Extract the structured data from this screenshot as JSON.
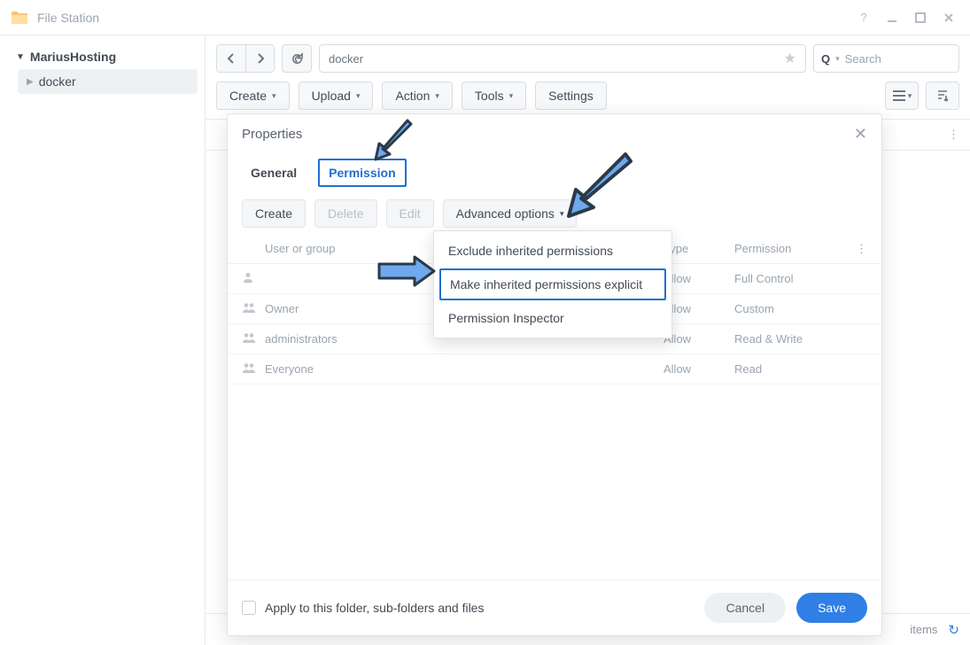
{
  "window": {
    "title": "File Station"
  },
  "sidebar": {
    "root": "MariusHosting",
    "items": [
      "docker"
    ]
  },
  "toolbar": {
    "path": "docker",
    "search_placeholder": "Search",
    "buttons": {
      "create": "Create",
      "upload": "Upload",
      "action": "Action",
      "tools": "Tools",
      "settings": "Settings"
    }
  },
  "statusbar": {
    "text": "items"
  },
  "dialog": {
    "title": "Properties",
    "tabs": {
      "general": "General",
      "permission": "Permission"
    },
    "tools": {
      "create": "Create",
      "delete": "Delete",
      "edit": "Edit",
      "advanced": "Advanced options"
    },
    "columns": {
      "user": "User or group",
      "type": "Type",
      "perm": "Permission"
    },
    "rows": [
      {
        "user": "",
        "type": "Allow",
        "perm": "Full Control",
        "icon": "user"
      },
      {
        "user": "Owner",
        "type": "Allow",
        "perm": "Custom",
        "icon": "group"
      },
      {
        "user": "administrators",
        "type": "Allow",
        "perm": "Read & Write",
        "icon": "group"
      },
      {
        "user": "Everyone",
        "type": "Allow",
        "perm": "Read",
        "icon": "group"
      }
    ],
    "apply_label": "Apply to this folder, sub-folders and files",
    "cancel": "Cancel",
    "save": "Save"
  },
  "dropdown": {
    "items": [
      "Exclude inherited permissions",
      "Make inherited permissions explicit",
      "Permission Inspector"
    ],
    "highlighted_index": 1
  },
  "colors": {
    "accent": "#1f6fd1",
    "arrow_fill": "#6fa8ec",
    "arrow_stroke": "#2a3a4a",
    "text_muted": "#9aa4af",
    "border": "#d7dde2"
  }
}
